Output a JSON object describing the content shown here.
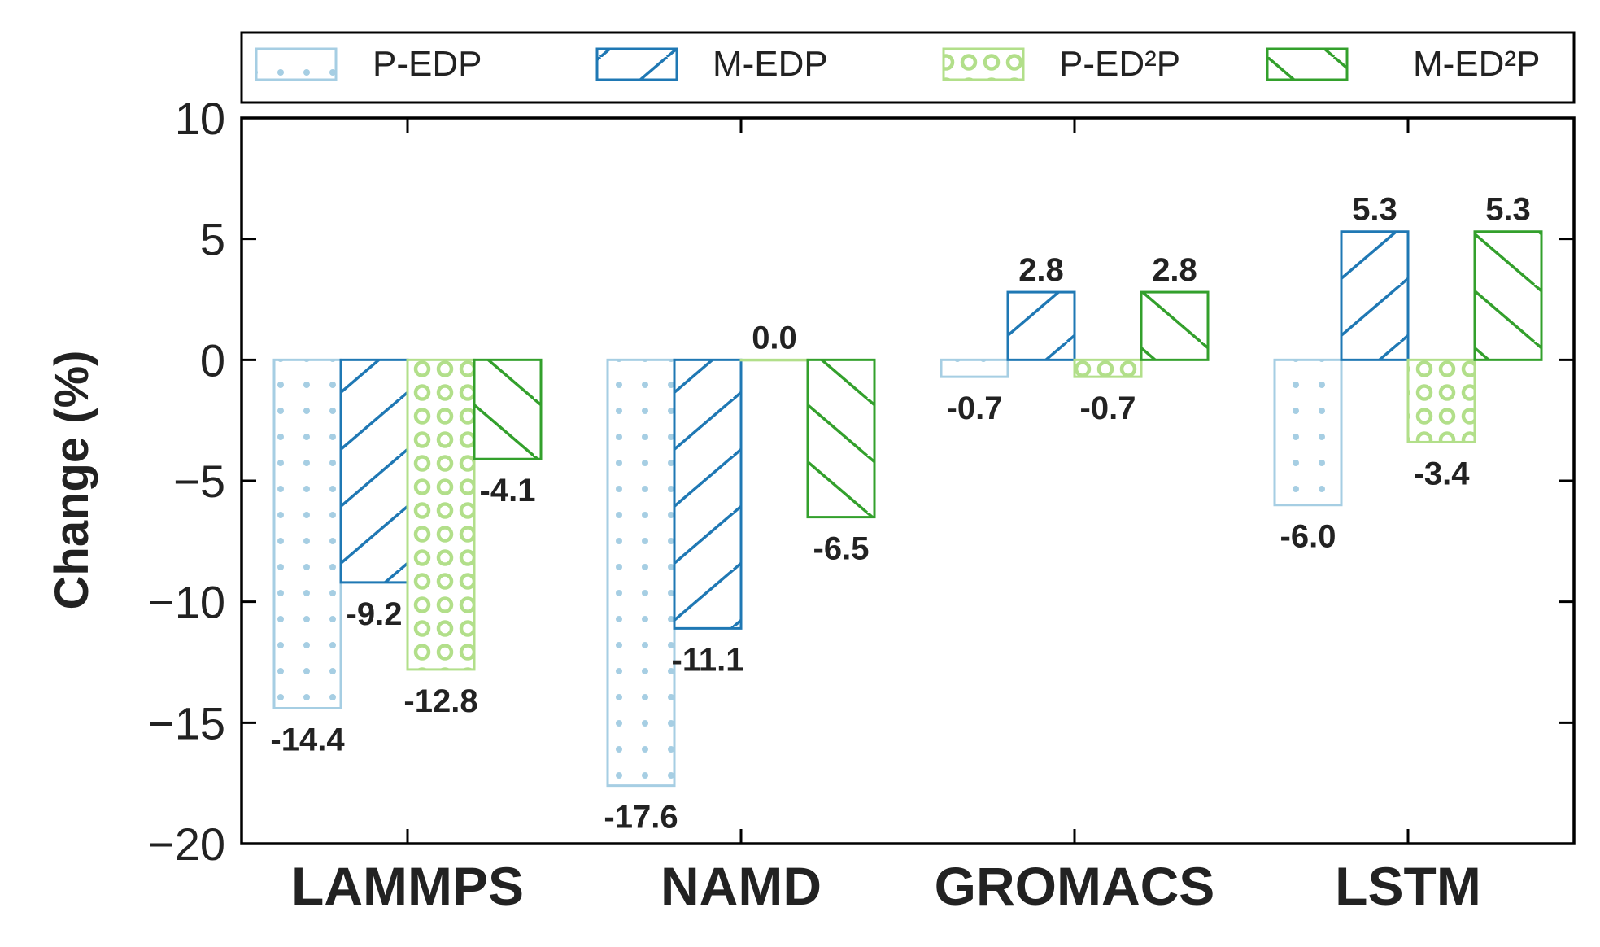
{
  "chart_data": {
    "type": "bar",
    "categories": [
      "LAMMPS",
      "NAMD",
      "GROMACS",
      "LSTM"
    ],
    "series": [
      {
        "name": "P-EDP",
        "values": [
          -14.4,
          -17.6,
          -0.7,
          -6.0
        ],
        "labels": [
          "-14.4",
          "-17.6",
          "-0.7",
          "-6.0"
        ],
        "color": "#a6cee3",
        "pattern": "dots"
      },
      {
        "name": "M-EDP",
        "values": [
          -9.2,
          -11.1,
          2.8,
          5.3
        ],
        "labels": [
          "-9.2",
          "-11.1",
          "2.8",
          "5.3"
        ],
        "color": "#1f78b4",
        "pattern": "forward-diagonal"
      },
      {
        "name": "P-ED²P",
        "values": [
          -12.8,
          0.0,
          -0.7,
          -3.4
        ],
        "labels": [
          "-12.8",
          "0.0",
          "-0.7",
          "-3.4"
        ],
        "color": "#b2df8a",
        "pattern": "circles"
      },
      {
        "name": "M-ED²P",
        "values": [
          -4.1,
          -6.5,
          2.8,
          5.3
        ],
        "labels": [
          "-4.1",
          "-6.5",
          "2.8",
          "5.3"
        ],
        "color": "#33a02c",
        "pattern": "back-diagonal"
      }
    ],
    "title": "",
    "xlabel": "",
    "ylabel": "Change (%)",
    "ylim": [
      -20,
      10
    ],
    "yticks": [
      10,
      5,
      0,
      -5,
      -10,
      -15,
      -20
    ],
    "ytick_labels": [
      "10",
      "5",
      "0",
      "−5",
      "−10",
      "−15",
      "−20"
    ],
    "grid": false,
    "legend_position": "top"
  }
}
